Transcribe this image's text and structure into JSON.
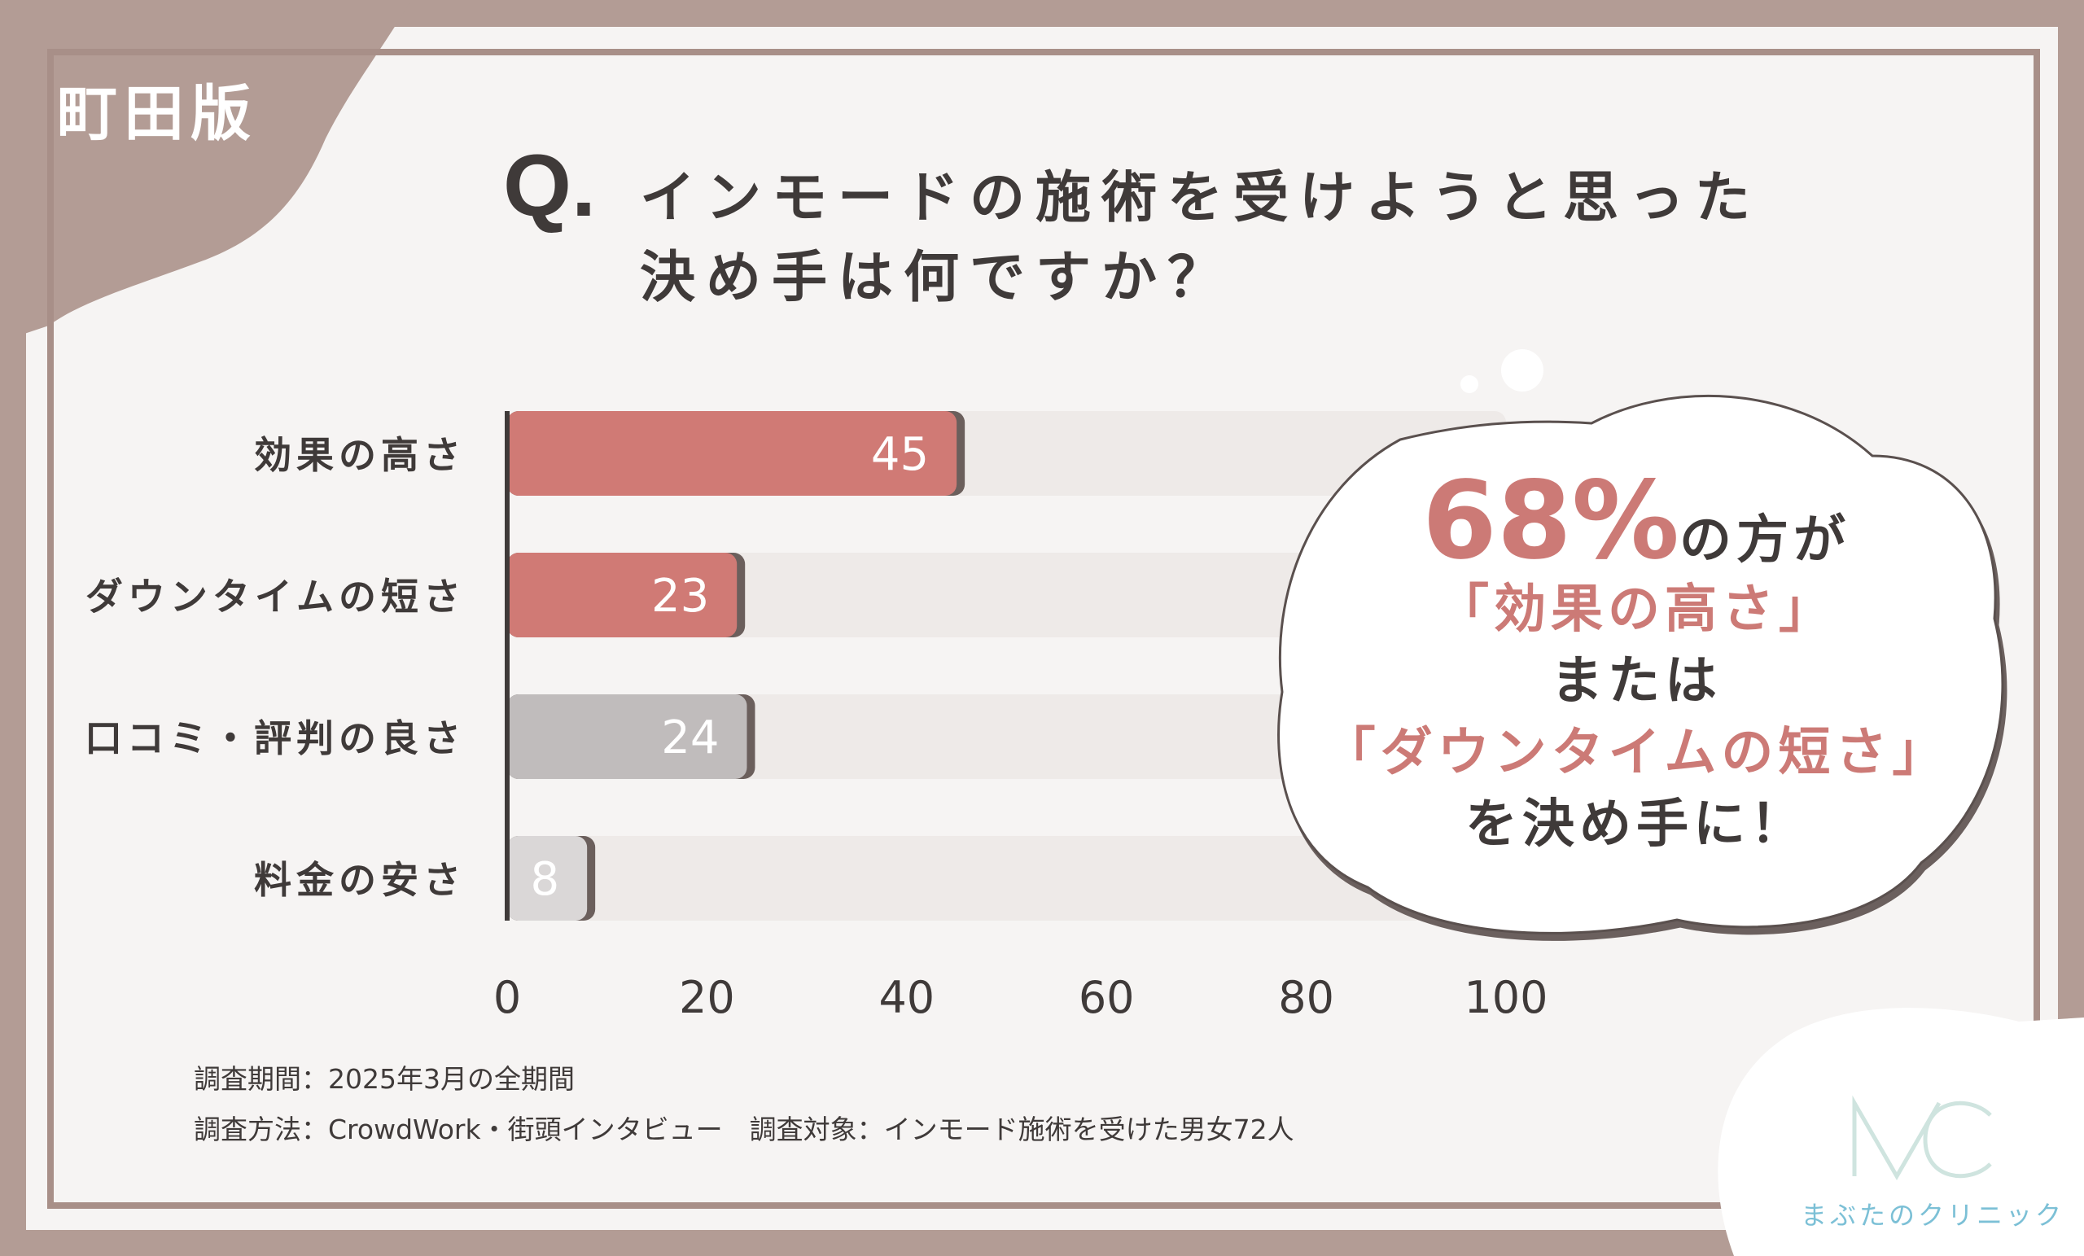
{
  "tag": "町田版",
  "title": {
    "q": "Q.",
    "line1": "インモードの施術を受けようと思った",
    "line2": "決め手は何ですか？"
  },
  "chart_data": {
    "type": "bar",
    "orientation": "horizontal",
    "categories": [
      "効果の高さ",
      "ダウンタイムの短さ",
      "口コミ・評判の良さ",
      "料金の安さ"
    ],
    "values": [
      45,
      23,
      24,
      8
    ],
    "xlim": [
      0,
      100
    ],
    "xticks": [
      "0",
      "20",
      "40",
      "60",
      "80",
      "100"
    ],
    "colors": [
      "#d07a75",
      "#d07a75",
      "#c0bcbc",
      "#dad7d7"
    ],
    "track_color": "#eeeae8",
    "grid": false
  },
  "callout": {
    "big": "68%",
    "after_big": "の方が",
    "item1": "「効果の高さ」",
    "or": "または",
    "item2": "「ダウンタイムの短さ」",
    "end": "を決め手に！"
  },
  "notes": {
    "period": "調査期間：2025年3月の全期間",
    "method": "調査方法：CrowdWork・街頭インタビュー　調査対象：インモード施術を受けた男女72人"
  },
  "logo": {
    "mark": "MC",
    "name": "まぶたのクリニック",
    "color": "#7cc0d6"
  }
}
